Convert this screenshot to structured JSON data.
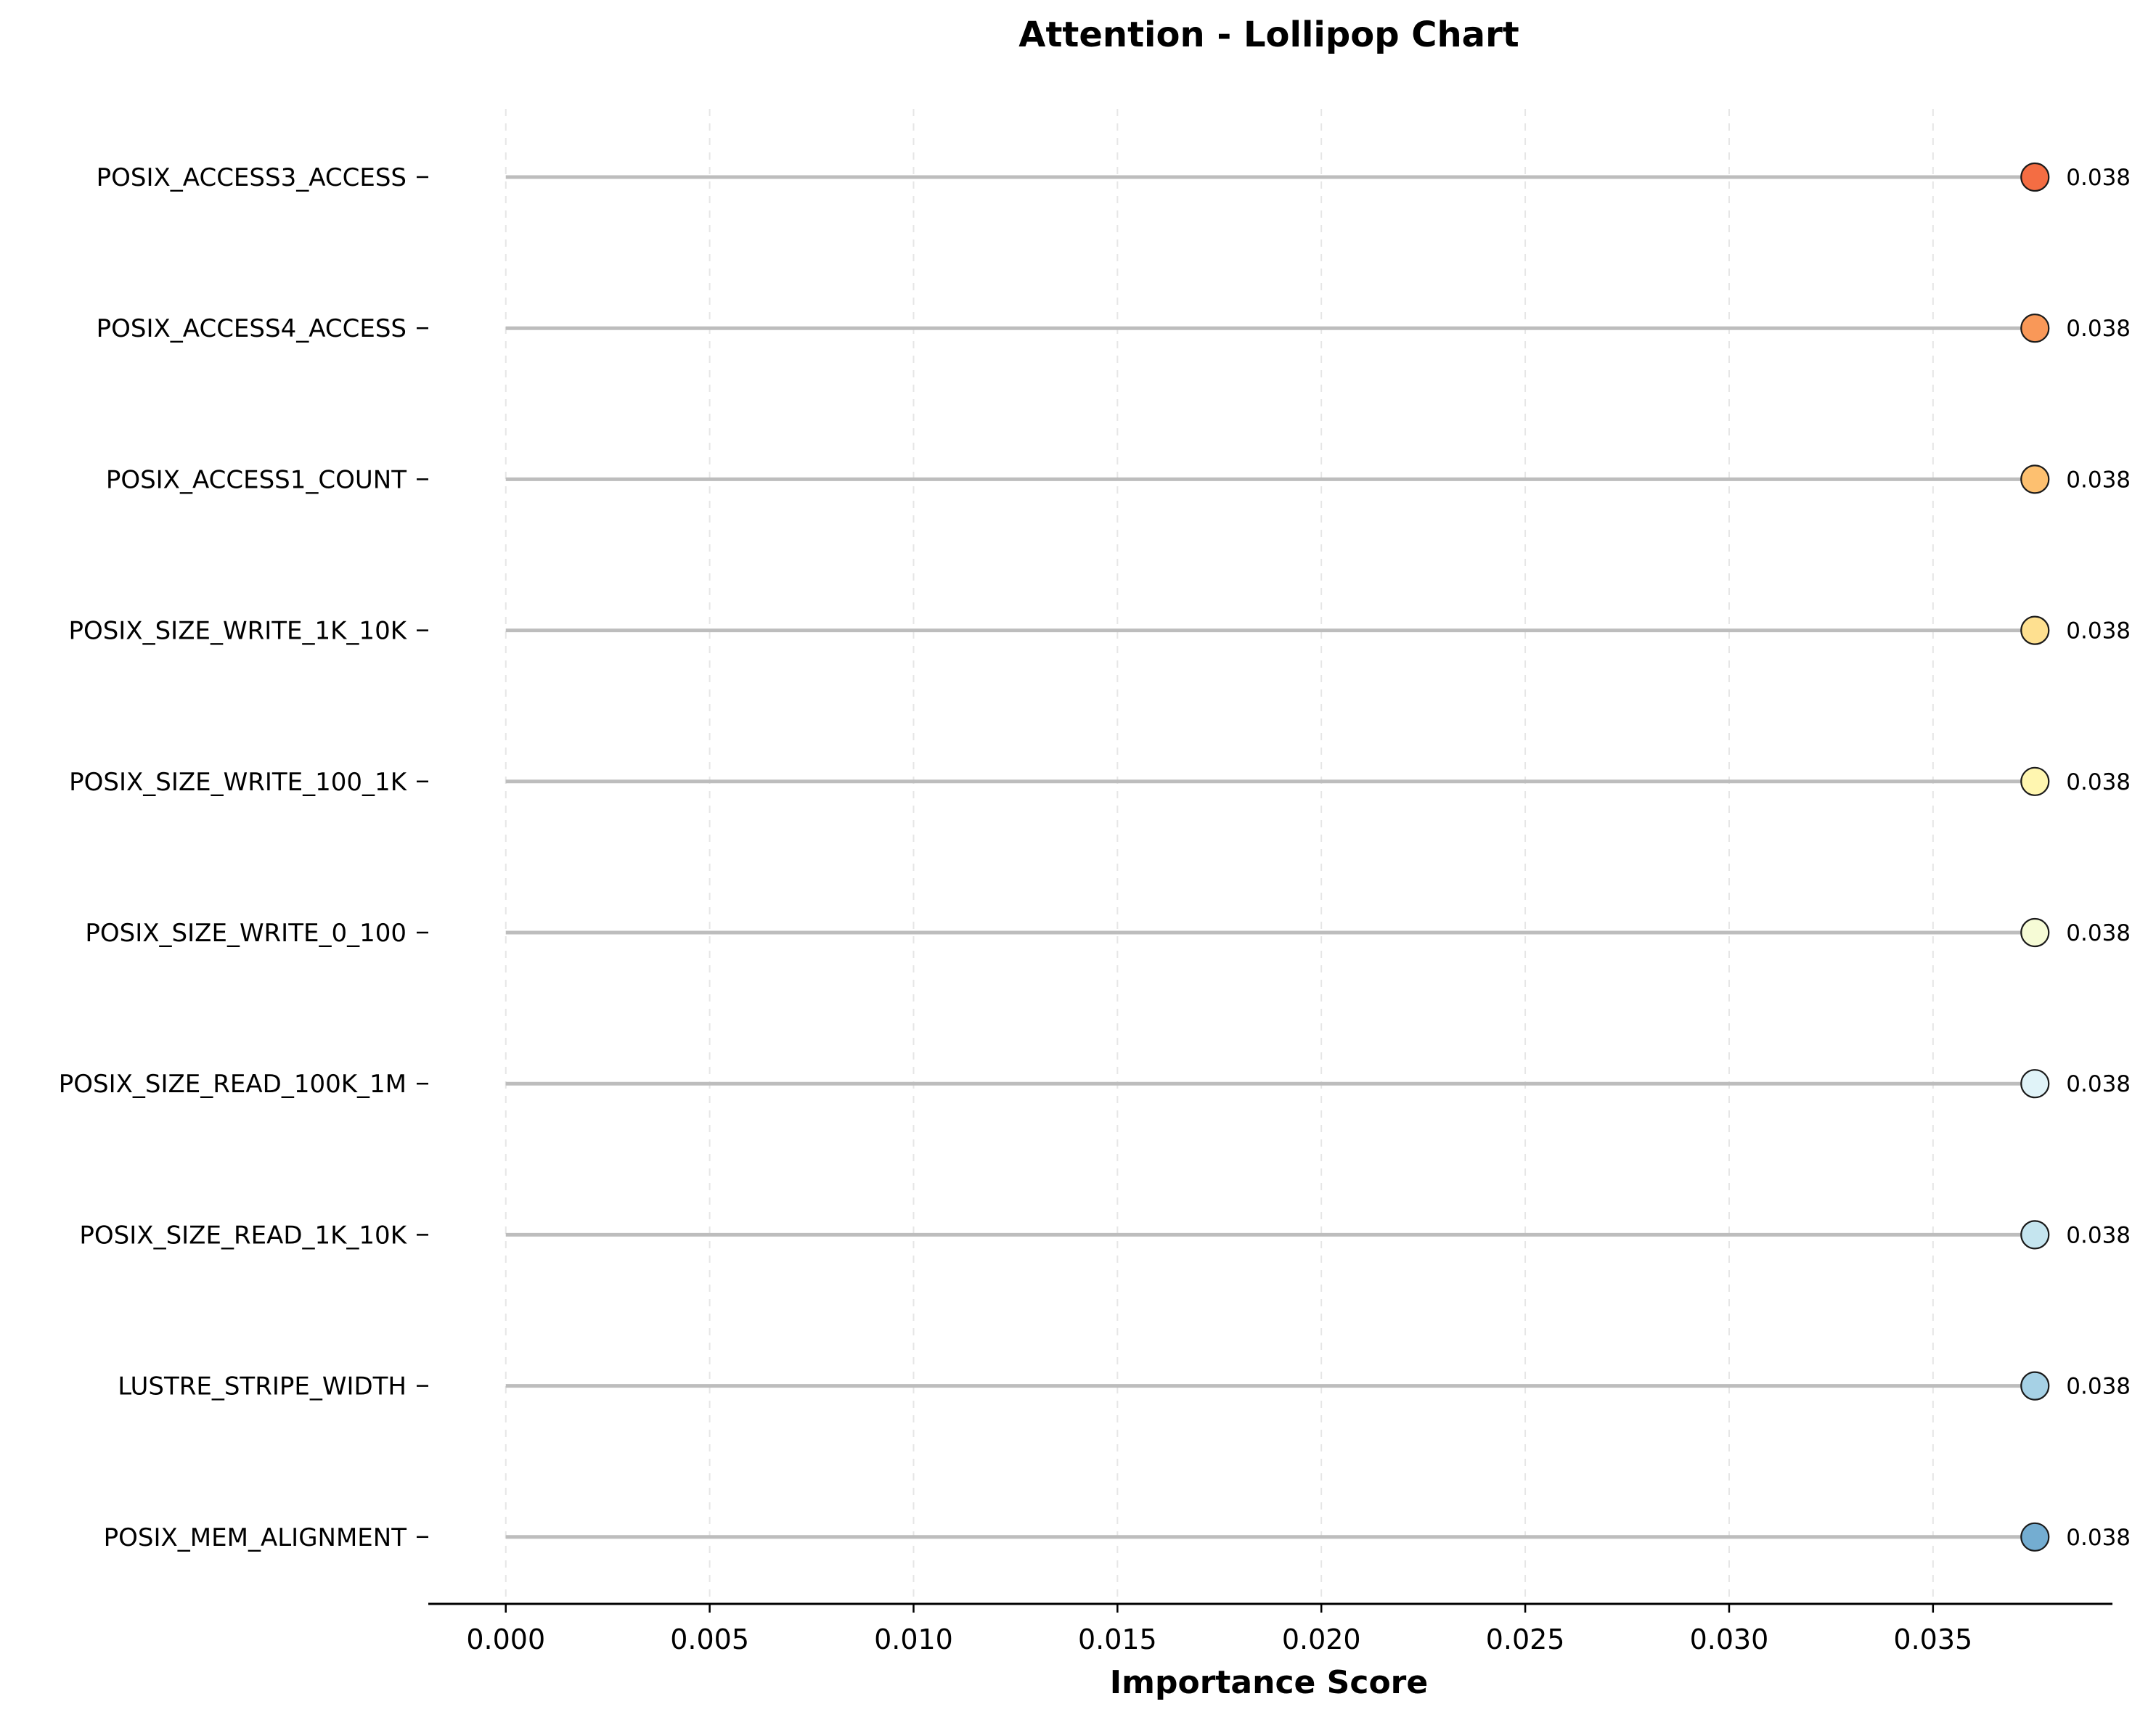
{
  "chart_data": {
    "type": "lollipop",
    "title": "Attention - Lollipop Chart",
    "xlabel": "Importance Score",
    "ylabel": "",
    "xlim": [
      -0.0019,
      0.0394
    ],
    "xticks": [
      "0.000",
      "0.005",
      "0.010",
      "0.015",
      "0.020",
      "0.025",
      "0.030",
      "0.035"
    ],
    "grid": "vertical dashed",
    "categories": [
      "POSIX_ACCESS3_ACCESS",
      "POSIX_ACCESS4_ACCESS",
      "POSIX_ACCESS1_COUNT",
      "POSIX_SIZE_WRITE_1K_10K",
      "POSIX_SIZE_WRITE_100_1K",
      "POSIX_SIZE_WRITE_0_100",
      "POSIX_SIZE_READ_100K_1M",
      "POSIX_SIZE_READ_1K_10K",
      "LUSTRE_STRIPE_WIDTH",
      "POSIX_MEM_ALIGNMENT"
    ],
    "values": [
      0.0375,
      0.0375,
      0.0375,
      0.0375,
      0.0375,
      0.0375,
      0.0375,
      0.0375,
      0.0375,
      0.0375
    ],
    "value_labels": [
      "0.038",
      "0.038",
      "0.038",
      "0.038",
      "0.038",
      "0.038",
      "0.038",
      "0.038",
      "0.038",
      "0.038"
    ],
    "colors": [
      "#f46d43",
      "#f99858",
      "#fdc070",
      "#fee090",
      "#fff6b0",
      "#f6fbd6",
      "#e0f3f8",
      "#c5e5ef",
      "#a6d1e5",
      "#74add1"
    ]
  }
}
